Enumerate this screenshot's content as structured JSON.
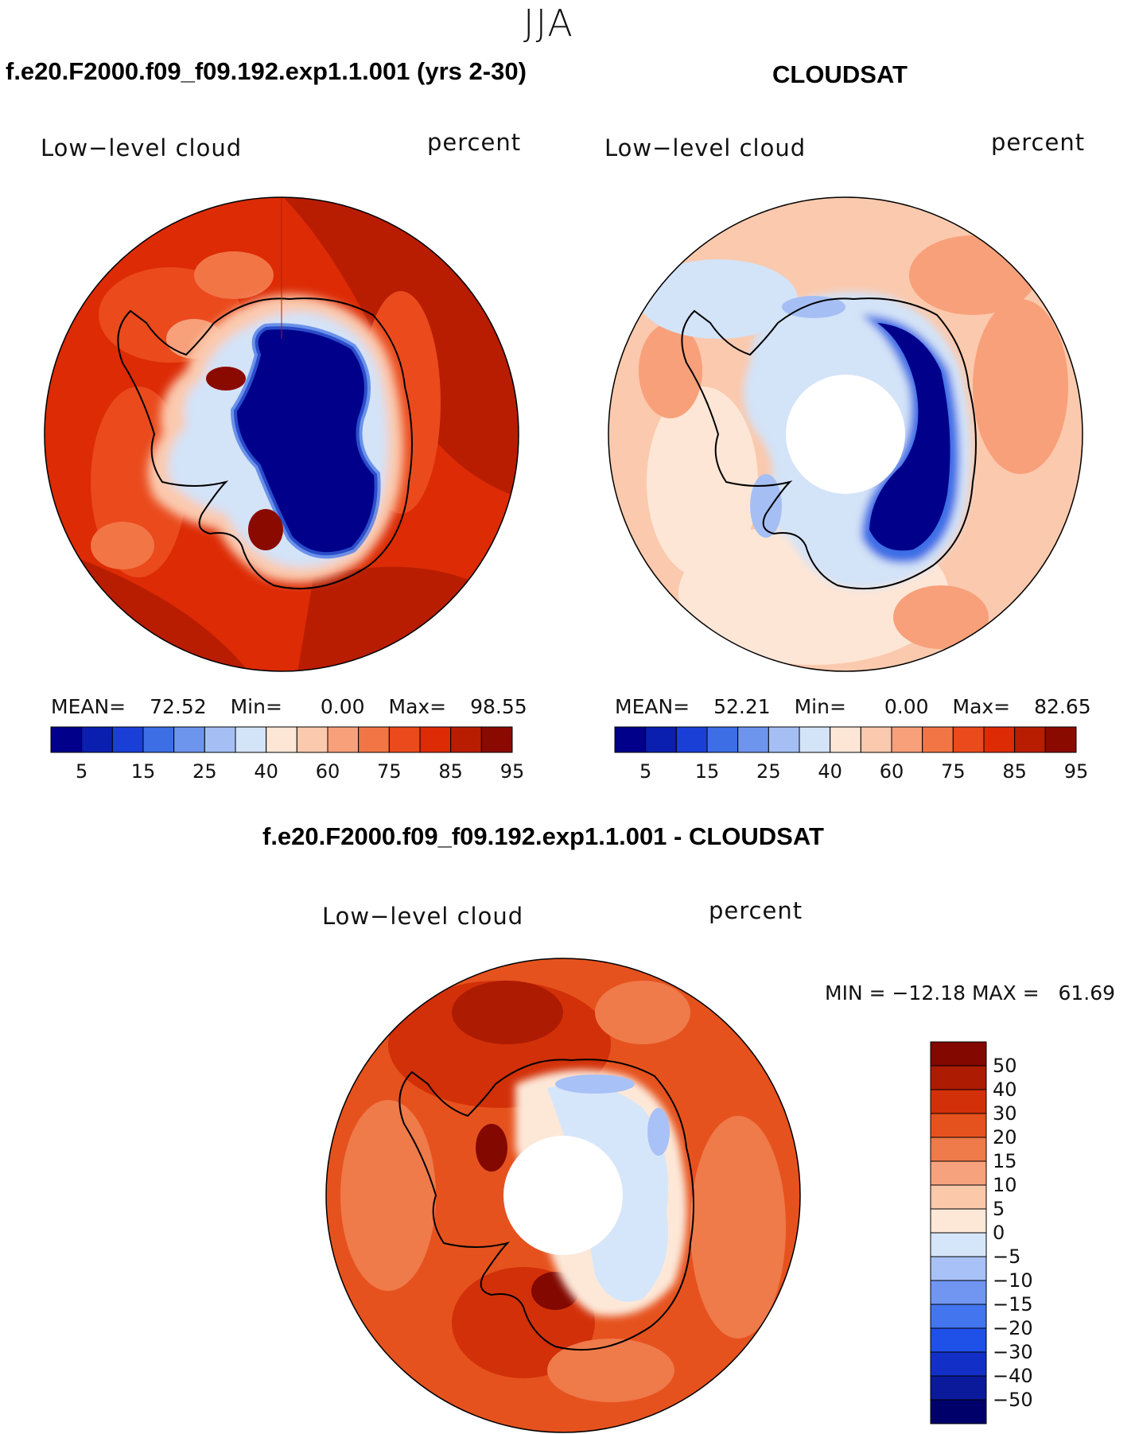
{
  "figure": {
    "season": "JJA",
    "colors": {
      "level_palette": [
        "#00008b",
        "#0a1fb0",
        "#1a3fd6",
        "#3d6ee6",
        "#6e95ee",
        "#a5bff4",
        "#d3e3f8",
        "#fde6d6",
        "#fbc9ad",
        "#f7a07a",
        "#f27546",
        "#ea4a1c",
        "#dc2b05",
        "#b81d02",
        "#8b0a00"
      ],
      "diff_palette": [
        "#00006b",
        "#0a1a9a",
        "#1230c8",
        "#1f50e8",
        "#4275ee",
        "#7096f2",
        "#a8c1f6",
        "#d6e6fa",
        "#fde8d8",
        "#fbc8aa",
        "#f6a27c",
        "#ef7a4a",
        "#e6521e",
        "#d23008",
        "#ad1c02",
        "#820800"
      ]
    }
  },
  "panels": [
    {
      "id": "model",
      "title": "f.e20.F2000.f09_f09.192.exp1.1.001 (yrs 2-30)",
      "variable": "Low−level cloud",
      "units": "percent",
      "stats": {
        "mean_label": "MEAN=",
        "mean": "72.52",
        "min_label": "Min=",
        "min": "0.00",
        "max_label": "Max=",
        "max": "98.55"
      },
      "colorbar_ticks": [
        "5",
        "15",
        "25",
        "40",
        "60",
        "75",
        "85",
        "95"
      ]
    },
    {
      "id": "obs",
      "title": "CLOUDSAT",
      "variable": "Low−level cloud",
      "units": "percent",
      "stats": {
        "mean_label": "MEAN=",
        "mean": "52.21",
        "min_label": "Min=",
        "min": "0.00",
        "max_label": "Max=",
        "max": "82.65"
      },
      "colorbar_ticks": [
        "5",
        "15",
        "25",
        "40",
        "60",
        "75",
        "85",
        "95"
      ]
    },
    {
      "id": "diff",
      "title": "f.e20.F2000.f09_f09.192.exp1.1.001 - CLOUDSAT",
      "variable": "Low−level cloud",
      "units": "percent",
      "stats_text": "MIN = −12.18 MAX =   61.69",
      "colorbar_ticks": [
        "50",
        "40",
        "30",
        "20",
        "15",
        "10",
        "5",
        "0",
        "−5",
        "−10",
        "−15",
        "−20",
        "−30",
        "−40",
        "−50"
      ]
    }
  ]
}
